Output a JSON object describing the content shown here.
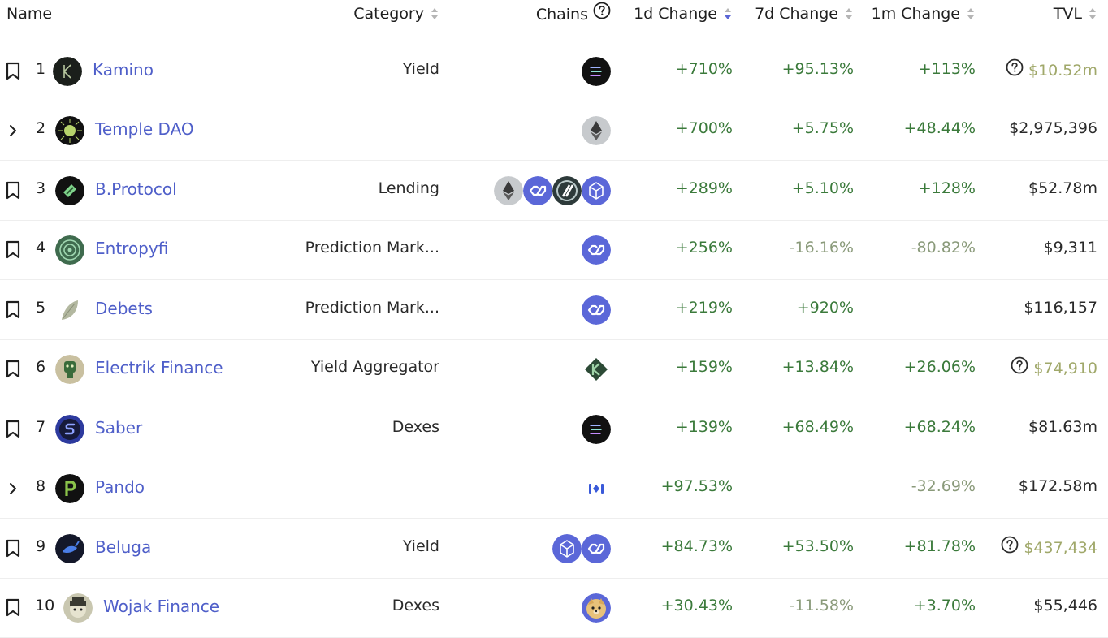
{
  "header": {
    "name": "Name",
    "category": "Category",
    "chains": "Chains",
    "change_1d": "1d Change",
    "change_7d": "7d Change",
    "change_1m": "1m Change",
    "tvl": "TVL"
  },
  "colors": {
    "link": "#4f5fc9",
    "positive": "#3b7a3b",
    "negative": "#8a9a7a",
    "uncertain_tvl": "#a0a86a"
  },
  "rows": [
    {
      "rank": "1",
      "name": "Kamino",
      "category": "Yield",
      "lead": "bookmark-icon",
      "chains": [
        "solana"
      ],
      "d1": "+710%",
      "d7": "+95.13%",
      "m1": "+113%",
      "tvl": "$10.52m",
      "tvl_uncertain": true
    },
    {
      "rank": "2",
      "name": "Temple DAO",
      "category": "",
      "lead": "chevron-right-icon",
      "chains": [
        "ethereum"
      ],
      "d1": "+700%",
      "d7": "+5.75%",
      "m1": "+48.44%",
      "tvl": "$2,975,396",
      "tvl_uncertain": false
    },
    {
      "rank": "3",
      "name": "B.Protocol",
      "category": "Lending",
      "lead": "bookmark-icon",
      "chains": [
        "ethereum",
        "polygon",
        "arbitrum",
        "fantom"
      ],
      "d1": "+289%",
      "d7": "+5.10%",
      "m1": "+128%",
      "tvl": "$52.78m",
      "tvl_uncertain": false
    },
    {
      "rank": "4",
      "name": "Entropyfi",
      "category": "Prediction Mark...",
      "lead": "bookmark-icon",
      "chains": [
        "polygon"
      ],
      "d1": "+256%",
      "d7": "-16.16%",
      "m1": "-80.82%",
      "tvl": "$9,311",
      "tvl_uncertain": false
    },
    {
      "rank": "5",
      "name": "Debets",
      "category": "Prediction Mark...",
      "lead": "bookmark-icon",
      "chains": [
        "polygon"
      ],
      "d1": "+219%",
      "d7": "+920%",
      "m1": "",
      "tvl": "$116,157",
      "tvl_uncertain": false
    },
    {
      "rank": "6",
      "name": "Electrik Finance",
      "category": "Yield Aggregator",
      "lead": "bookmark-icon",
      "chains": [
        "kcc"
      ],
      "d1": "+159%",
      "d7": "+13.84%",
      "m1": "+26.06%",
      "tvl": "$74,910",
      "tvl_uncertain": true
    },
    {
      "rank": "7",
      "name": "Saber",
      "category": "Dexes",
      "lead": "bookmark-icon",
      "chains": [
        "solana"
      ],
      "d1": "+139%",
      "d7": "+68.49%",
      "m1": "+68.24%",
      "tvl": "$81.63m",
      "tvl_uncertain": false
    },
    {
      "rank": "8",
      "name": "Pando",
      "category": "",
      "lead": "chevron-right-icon",
      "chains": [
        "mixin"
      ],
      "d1": "+97.53%",
      "d7": "",
      "m1": "-32.69%",
      "tvl": "$172.58m",
      "tvl_uncertain": false
    },
    {
      "rank": "9",
      "name": "Beluga",
      "category": "Yield",
      "lead": "bookmark-icon",
      "chains": [
        "fantom",
        "polygon"
      ],
      "d1": "+84.73%",
      "d7": "+53.50%",
      "m1": "+81.78%",
      "tvl": "$437,434",
      "tvl_uncertain": true
    },
    {
      "rank": "10",
      "name": "Wojak Finance",
      "category": "Dexes",
      "lead": "bookmark-icon",
      "chains": [
        "dogechain"
      ],
      "d1": "+30.43%",
      "d7": "-11.58%",
      "m1": "+3.70%",
      "tvl": "$55,446",
      "tvl_uncertain": false
    }
  ]
}
